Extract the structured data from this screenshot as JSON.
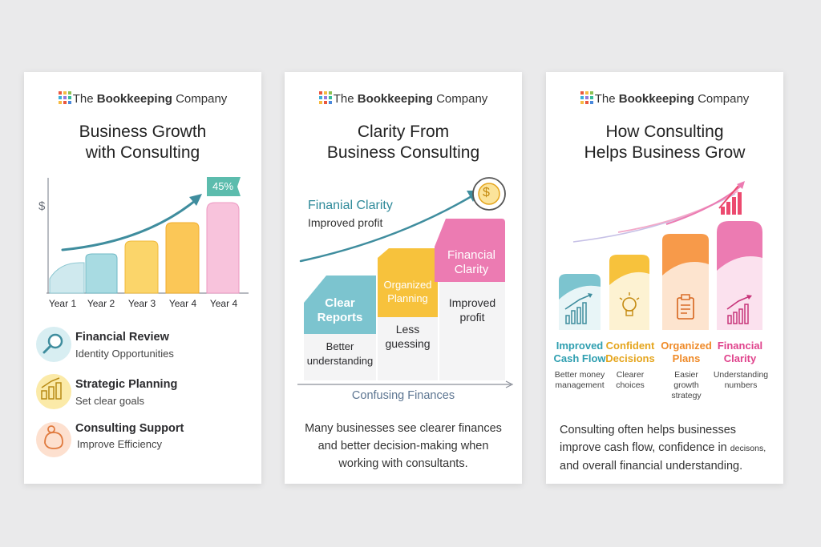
{
  "brand": {
    "the": "The",
    "bold": "Bookkeeping",
    "rest": "Company"
  },
  "card1": {
    "title_line1": "Business Growth",
    "title_line2": "with Consulting",
    "y_axis_symbol": "$",
    "badge": "45%",
    "x_labels": [
      "Year 1",
      "Year 2",
      "Year 3",
      "Year 4",
      "Year 4"
    ],
    "items": [
      {
        "title": "Financial Review",
        "subtitle": "Identity Opportunities",
        "icon": "magnifier-icon"
      },
      {
        "title": "Strategic Planning",
        "subtitle": "Set clear goals",
        "icon": "growth-chart-icon"
      },
      {
        "title": "Consulting Support",
        "subtitle": "Improve Efficiency",
        "icon": "support-icon"
      }
    ]
  },
  "card2": {
    "title_line1": "Clarity From",
    "title_line2": "Business Consulting",
    "headline": "Finanial Clarity",
    "subheadline": "Improved profit",
    "steps": [
      {
        "label_1": "Clear",
        "label_2": "Reports",
        "note_1": "Better",
        "note_2": "understanding"
      },
      {
        "label_1": "Organized",
        "label_2": "Planning",
        "note_1": "Less",
        "note_2": "guessing"
      },
      {
        "label_1": "Financial",
        "label_2": "Clarity",
        "note_1": "Improved",
        "note_2": "profit"
      }
    ],
    "x_axis_label": "Confusing Finances",
    "blurb_1": "Many businesses see clearer finances",
    "blurb_2": "and better decision-making when",
    "blurb_3": "working with consultants."
  },
  "card3": {
    "title_line1": "How Consulting",
    "title_line2": "Helps Business Grow",
    "columns": [
      {
        "label_1": "Improved",
        "label_2": "Cash Flow",
        "desc_1": "Better money",
        "desc_2": "management",
        "desc_3": "",
        "icon": "bar-chart-icon"
      },
      {
        "label_1": "Confident",
        "label_2": "Decisions",
        "desc_1": "Clearer",
        "desc_2": "choices",
        "desc_3": "",
        "icon": "lightbulb-icon"
      },
      {
        "label_1": "Organized",
        "label_2": "Plans",
        "desc_1": "Easier",
        "desc_2": "growth",
        "desc_3": "strategy",
        "icon": "clipboard-icon"
      },
      {
        "label_1": "Financial",
        "label_2": "Clarity",
        "desc_1": "Understanding",
        "desc_2": "numbers",
        "desc_3": "",
        "icon": "growth-chart-icon"
      }
    ],
    "blurb_1": "Consulting often helps businesses",
    "blurb_2": "improve cash flow, confidence in",
    "blurb_2b": "decisons,",
    "blurb_3": "and overall financial understanding."
  },
  "colors": {
    "teal": "#7cc4cf",
    "yellow": "#f7c23c",
    "orange": "#f79a4a",
    "pink": "#ec7bb2",
    "label_teal": "#2f9fb0",
    "label_yellow": "#e5a51d",
    "label_orange": "#ef8a28",
    "label_pink": "#e0438c"
  }
}
